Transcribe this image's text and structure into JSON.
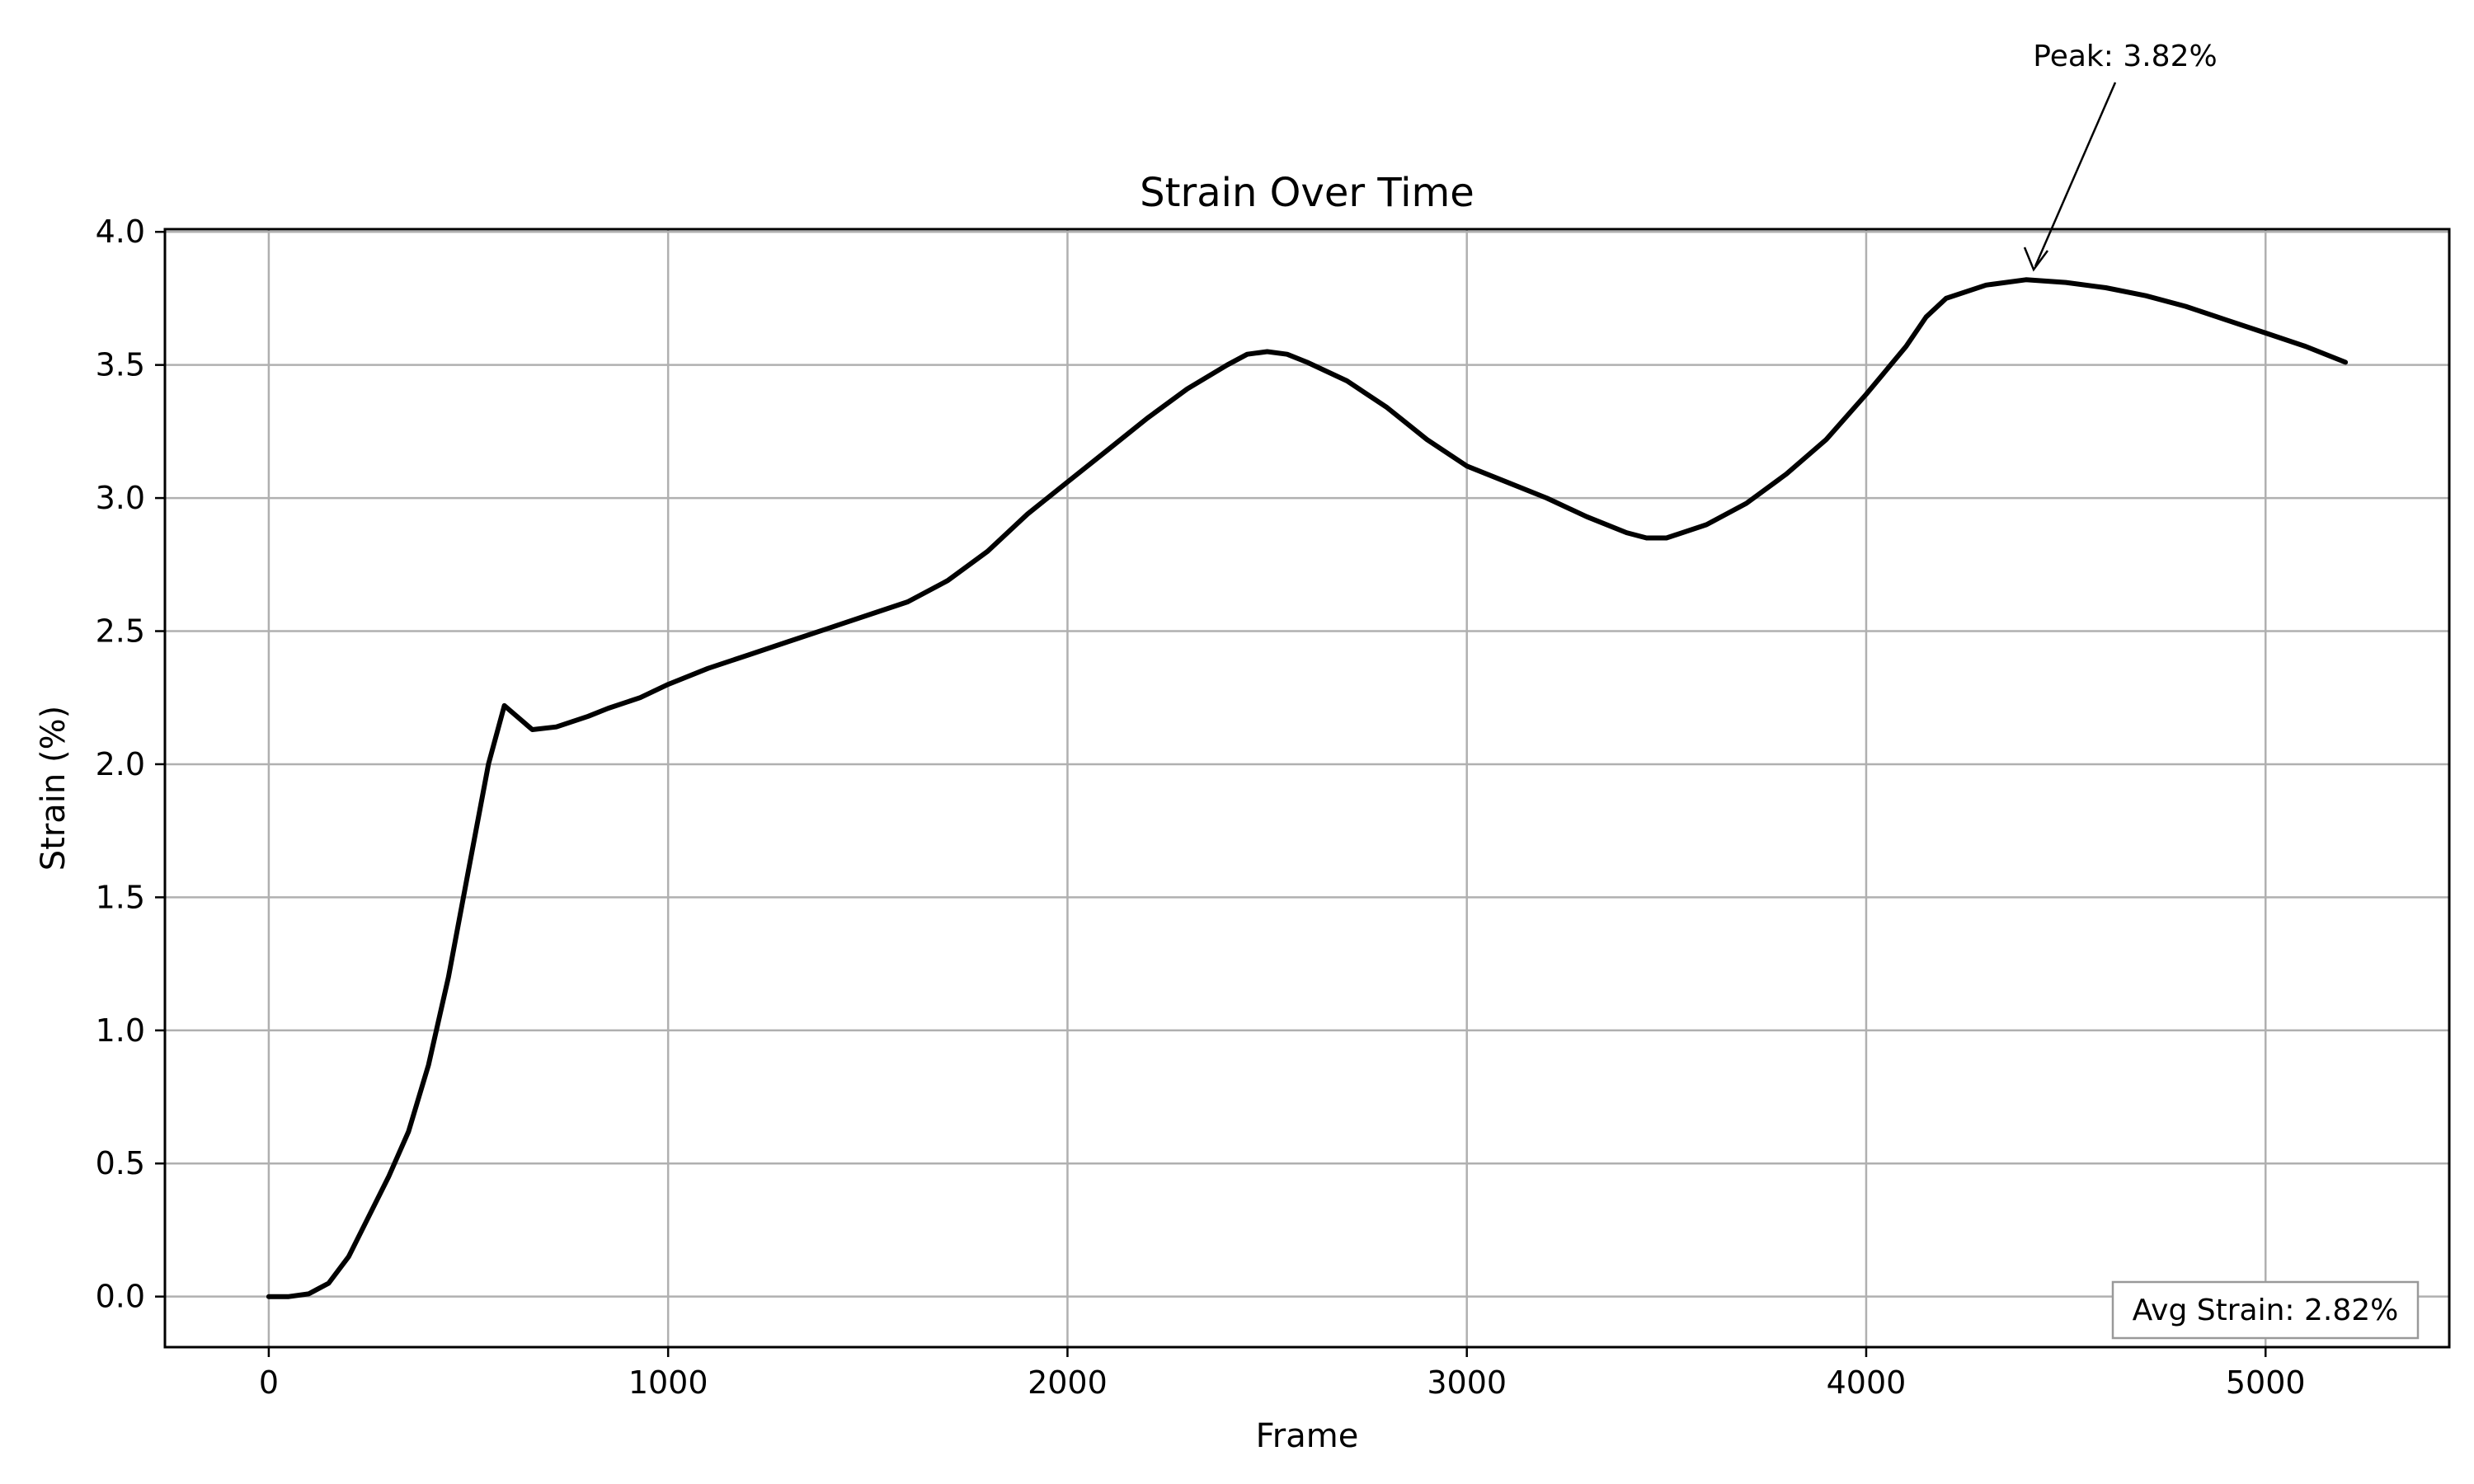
{
  "chart_data": {
    "type": "line",
    "title": "Strain Over Time",
    "xlabel": "Frame",
    "ylabel": "Strain (%)",
    "xlim": [
      -260,
      5460
    ],
    "ylim": [
      -0.19,
      4.01
    ],
    "x_ticks": [
      0,
      1000,
      2000,
      3000,
      4000,
      5000
    ],
    "y_ticks": [
      0.0,
      0.5,
      1.0,
      1.5,
      2.0,
      2.5,
      3.0,
      3.5,
      4.0
    ],
    "x_tick_labels": [
      "0",
      "1000",
      "2000",
      "3000",
      "4000",
      "5000"
    ],
    "y_tick_labels": [
      "0.0",
      "0.5",
      "1.0",
      "1.5",
      "2.0",
      "2.5",
      "3.0",
      "3.5",
      "4.0"
    ],
    "grid": true,
    "series": [
      {
        "color": "#000000",
        "x": [
          0,
          50,
          100,
          150,
          200,
          250,
          300,
          350,
          400,
          450,
          500,
          550,
          590,
          660,
          720,
          800,
          850,
          930,
          1000,
          1100,
          1200,
          1300,
          1400,
          1500,
          1600,
          1700,
          1800,
          1900,
          2000,
          2100,
          2200,
          2300,
          2400,
          2450,
          2500,
          2550,
          2600,
          2700,
          2800,
          2900,
          3000,
          3100,
          3200,
          3300,
          3400,
          3450,
          3500,
          3600,
          3700,
          3800,
          3900,
          4000,
          4100,
          4150,
          4200,
          4300,
          4400,
          4500,
          4600,
          4700,
          4800,
          4900,
          5000,
          5100,
          5200
        ],
        "y": [
          0.0,
          0.0,
          0.01,
          0.05,
          0.15,
          0.3,
          0.45,
          0.62,
          0.87,
          1.2,
          1.6,
          2.0,
          2.22,
          2.13,
          2.14,
          2.18,
          2.21,
          2.25,
          2.3,
          2.36,
          2.41,
          2.46,
          2.51,
          2.56,
          2.61,
          2.69,
          2.8,
          2.94,
          3.06,
          3.18,
          3.3,
          3.41,
          3.5,
          3.54,
          3.55,
          3.54,
          3.51,
          3.44,
          3.34,
          3.22,
          3.12,
          3.06,
          3.0,
          2.93,
          2.87,
          2.85,
          2.85,
          2.9,
          2.98,
          3.09,
          3.22,
          3.39,
          3.57,
          3.68,
          3.75,
          3.8,
          3.82,
          3.81,
          3.79,
          3.76,
          3.72,
          3.67,
          3.62,
          3.57,
          3.51
        ]
      }
    ],
    "annotations": {
      "peak": {
        "text": "Peak: 3.82%",
        "x": 4400,
        "y": 3.82
      },
      "average": {
        "text": "Avg Strain: 2.82%",
        "placement": "bottom-right"
      }
    }
  }
}
